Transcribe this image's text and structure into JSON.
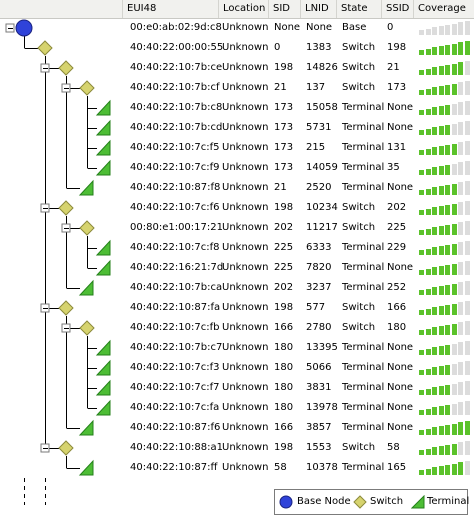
{
  "columns": [
    "EUI48",
    "Location",
    "SID",
    "LNID",
    "State",
    "SSID",
    "Coverage"
  ],
  "colors": {
    "bar_on": "#5bc22a",
    "bar_off": "#dcdcdc",
    "switch_fill": "#d6d36e",
    "switch_stroke": "#8c8a3b",
    "terminal_fill": "#4dbd35",
    "terminal_stroke": "#24801a",
    "base_fill": "#2f43d9",
    "base_stroke": "#1a2380"
  },
  "rows": [
    {
      "eui": "00:e0:ab:02:9d:c8",
      "location": "Unknown",
      "sid": "None",
      "lnid": "None",
      "state": "Base",
      "ssid": "0",
      "coverage": 0,
      "icon": "base-node-icon"
    },
    {
      "eui": "40:40:22:00:00:55",
      "location": "Unknown",
      "sid": "0",
      "lnid": "1383",
      "state": "Switch",
      "ssid": "198",
      "coverage": 8,
      "icon": "switch-icon"
    },
    {
      "eui": "40:40:22:10:7b:ce",
      "location": "Unknown",
      "sid": "198",
      "lnid": "14826",
      "state": "Switch",
      "ssid": "21",
      "coverage": 7,
      "icon": "switch-icon"
    },
    {
      "eui": "40:40:22:10:7b:cf",
      "location": "Unknown",
      "sid": "21",
      "lnid": "137",
      "state": "Switch",
      "ssid": "173",
      "coverage": 6,
      "icon": "switch-icon"
    },
    {
      "eui": "40:40:22:10:7b:c8",
      "location": "Unknown",
      "sid": "173",
      "lnid": "15058",
      "state": "Terminal",
      "ssid": "None",
      "coverage": 5,
      "icon": "terminal-icon"
    },
    {
      "eui": "40:40:22:10:7b:cd",
      "location": "Unknown",
      "sid": "173",
      "lnid": "5731",
      "state": "Terminal",
      "ssid": "None",
      "coverage": 5,
      "icon": "terminal-icon"
    },
    {
      "eui": "40:40:22:10:7c:f5",
      "location": "Unknown",
      "sid": "173",
      "lnid": "215",
      "state": "Terminal",
      "ssid": "131",
      "coverage": 6,
      "icon": "terminal-icon"
    },
    {
      "eui": "40:40:22:10:7c:f9",
      "location": "Unknown",
      "sid": "173",
      "lnid": "14059",
      "state": "Terminal",
      "ssid": "35",
      "coverage": 5,
      "icon": "terminal-icon"
    },
    {
      "eui": "40:40:22:10:87:f8",
      "location": "Unknown",
      "sid": "21",
      "lnid": "2520",
      "state": "Terminal",
      "ssid": "None",
      "coverage": 6,
      "icon": "terminal-icon"
    },
    {
      "eui": "40:40:22:10:7c:f6",
      "location": "Unknown",
      "sid": "198",
      "lnid": "10234",
      "state": "Switch",
      "ssid": "202",
      "coverage": 6,
      "icon": "switch-icon"
    },
    {
      "eui": "00:80:e1:00:17:21",
      "location": "Unknown",
      "sid": "202",
      "lnid": "11217",
      "state": "Switch",
      "ssid": "225",
      "coverage": 6,
      "icon": "switch-icon"
    },
    {
      "eui": "40:40:22:10:7c:f8",
      "location": "Unknown",
      "sid": "225",
      "lnid": "6333",
      "state": "Terminal",
      "ssid": "229",
      "coverage": 6,
      "icon": "terminal-icon"
    },
    {
      "eui": "40:40:22:16:21:7d",
      "location": "Unknown",
      "sid": "225",
      "lnid": "7820",
      "state": "Terminal",
      "ssid": "None",
      "coverage": 6,
      "icon": "terminal-icon"
    },
    {
      "eui": "40:40:22:10:7b:ca",
      "location": "Unknown",
      "sid": "202",
      "lnid": "3237",
      "state": "Terminal",
      "ssid": "252",
      "coverage": 6,
      "icon": "terminal-icon"
    },
    {
      "eui": "40:40:22:10:87:fa",
      "location": "Unknown",
      "sid": "198",
      "lnid": "577",
      "state": "Switch",
      "ssid": "166",
      "coverage": 6,
      "icon": "switch-icon"
    },
    {
      "eui": "40:40:22:10:7c:fb",
      "location": "Unknown",
      "sid": "166",
      "lnid": "2780",
      "state": "Switch",
      "ssid": "180",
      "coverage": 6,
      "icon": "switch-icon"
    },
    {
      "eui": "40:40:22:10:7b:c7",
      "location": "Unknown",
      "sid": "180",
      "lnid": "13395",
      "state": "Terminal",
      "ssid": "None",
      "coverage": 5,
      "icon": "terminal-icon"
    },
    {
      "eui": "40:40:22:10:7c:f3",
      "location": "Unknown",
      "sid": "180",
      "lnid": "5066",
      "state": "Terminal",
      "ssid": "None",
      "coverage": 5,
      "icon": "terminal-icon"
    },
    {
      "eui": "40:40:22:10:7c:f7",
      "location": "Unknown",
      "sid": "180",
      "lnid": "3831",
      "state": "Terminal",
      "ssid": "None",
      "coverage": 5,
      "icon": "terminal-icon"
    },
    {
      "eui": "40:40:22:10:7c:fa",
      "location": "Unknown",
      "sid": "180",
      "lnid": "13978",
      "state": "Terminal",
      "ssid": "None",
      "coverage": 5,
      "icon": "terminal-icon"
    },
    {
      "eui": "40:40:22:10:87:f6",
      "location": "Unknown",
      "sid": "166",
      "lnid": "3857",
      "state": "Terminal",
      "ssid": "None",
      "coverage": 8,
      "icon": "terminal-icon"
    },
    {
      "eui": "40:40:22:10:88:a1",
      "location": "Unknown",
      "sid": "198",
      "lnid": "1553",
      "state": "Switch",
      "ssid": "58",
      "coverage": 6,
      "icon": "switch-icon"
    },
    {
      "eui": "40:40:22:10:87:ff",
      "location": "Unknown",
      "sid": "58",
      "lnid": "10378",
      "state": "Terminal",
      "ssid": "165",
      "coverage": 7,
      "icon": "terminal-icon"
    }
  ],
  "legend": {
    "base_label": "Base Node",
    "switch_label": "Switch",
    "terminal_label": "Terminal"
  }
}
